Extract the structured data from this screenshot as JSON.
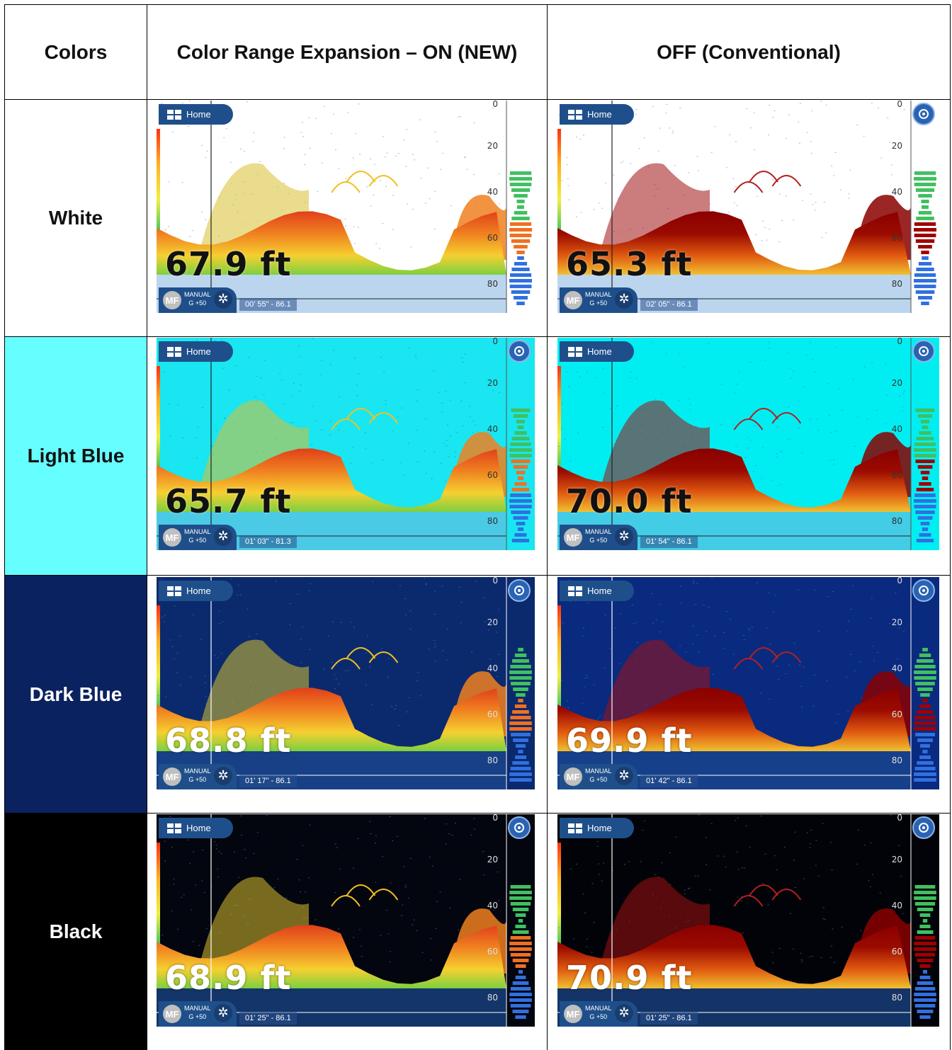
{
  "table": {
    "headers": {
      "colors": "Colors",
      "on": "Color Range Expansion – ON (NEW)",
      "off": "OFF (Conventional)"
    },
    "rows": [
      {
        "label": "White",
        "label_bg": "#ffffff",
        "label_color": "#111111",
        "on": {
          "depth": "67.9 ft",
          "time": "00' 55\" - 86.1",
          "bg": "#ffffff",
          "text_theme": "dark"
        },
        "off": {
          "depth": "65.3 ft",
          "time": "02' 05\" - 86.1",
          "bg": "#ffffff",
          "text_theme": "dark"
        }
      },
      {
        "label": "Light Blue",
        "label_bg": "#66ffff",
        "label_color": "#111111",
        "on": {
          "depth": "65.7 ft",
          "time": "01' 03\" - 81.3",
          "bg": "#19e6f0",
          "text_theme": "dark"
        },
        "off": {
          "depth": "70.0 ft",
          "time": "01' 54\" - 86.1",
          "bg": "#00eef2",
          "text_theme": "dark"
        }
      },
      {
        "label": "Dark Blue",
        "label_bg": "#0b2260",
        "label_color": "#ffffff",
        "on": {
          "depth": "68.8 ft",
          "time": "01' 17\" - 86.1",
          "bg": "#0b2a6e",
          "text_theme": "light"
        },
        "off": {
          "depth": "69.9 ft",
          "time": "01' 42\" - 86.1",
          "bg": "#0a2a80",
          "text_theme": "light"
        }
      },
      {
        "label": "Black",
        "label_bg": "#000000",
        "label_color": "#ffffff",
        "on": {
          "depth": "68.9 ft",
          "time": "01' 25\" - 86.1",
          "bg": "#03060f",
          "text_theme": "light"
        },
        "off": {
          "depth": "70.9 ft",
          "time": "01' 25\" - 86.1",
          "bg": "#020308",
          "text_theme": "light"
        }
      }
    ]
  },
  "ui": {
    "home_label": "Home",
    "mf_label": "MF",
    "manual_label": "MANUAL",
    "gain_label": "G +50",
    "gear_glyph": "✲",
    "scale_labels": [
      "0",
      "20",
      "40",
      "60",
      "80"
    ]
  }
}
